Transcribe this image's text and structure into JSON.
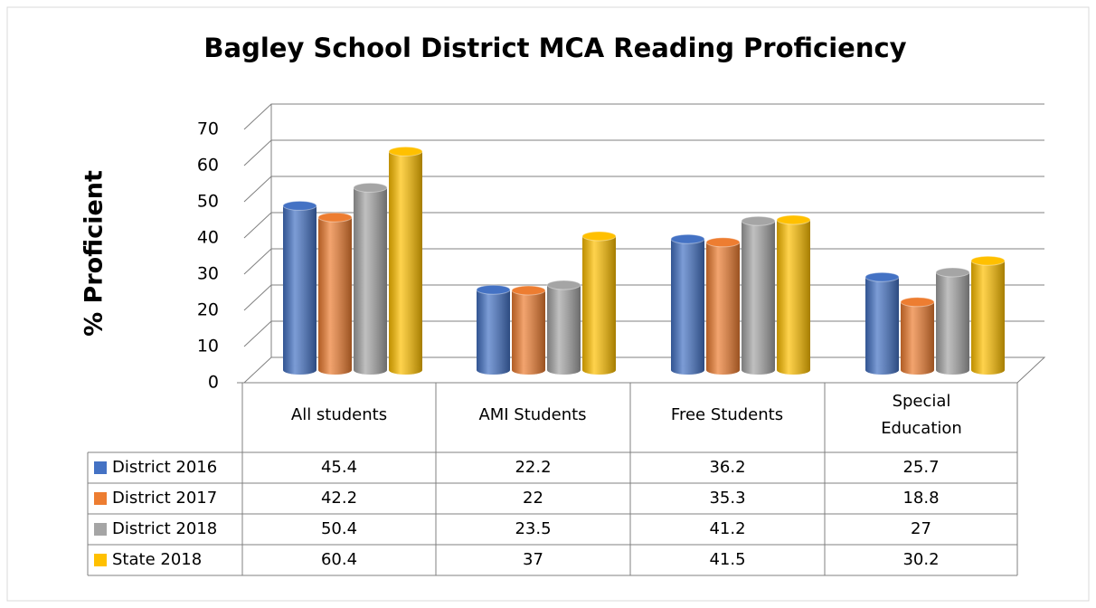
{
  "chart_data": {
    "type": "bar3d",
    "title": "Bagley School District MCA Reading Proficiency",
    "y_label": "% Proficient",
    "categories": [
      "All students",
      "AMI Students",
      "Free Students",
      "Special Education"
    ],
    "series": [
      {
        "name": "District 2016",
        "color": "#4472c4",
        "values": [
          45.4,
          22.2,
          36.2,
          25.7
        ]
      },
      {
        "name": "District 2017",
        "color": "#ed7d31",
        "values": [
          42.2,
          22,
          35.3,
          18.8
        ]
      },
      {
        "name": "District 2018",
        "color": "#a5a5a5",
        "values": [
          50.4,
          23.5,
          41.2,
          27
        ]
      },
      {
        "name": "State 2018",
        "color": "#ffc000",
        "values": [
          60.4,
          37,
          41.5,
          30.2
        ]
      }
    ],
    "ylim": [
      0,
      70
    ],
    "yticks": [
      0,
      10,
      20,
      30,
      40,
      50,
      60,
      70
    ],
    "grid": true,
    "data_table": true
  }
}
